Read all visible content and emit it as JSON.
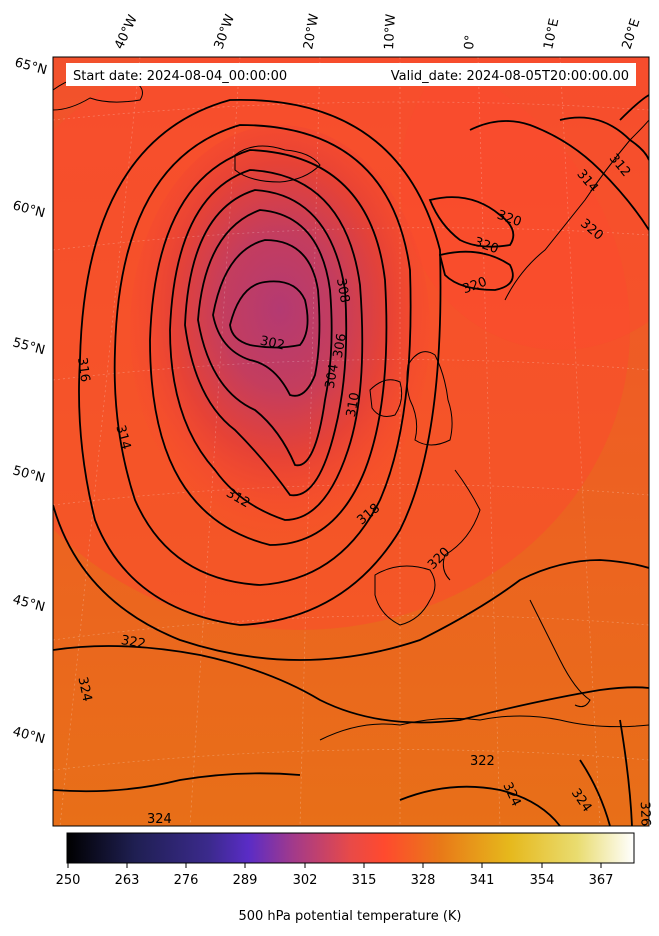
{
  "header": {
    "start_date": "Start date: 2024-08-04_00:00:00",
    "valid_date": "Valid_date: 2024-08-05T20:00:00.00"
  },
  "graticule": {
    "longitudes": [
      "40°W",
      "30°W",
      "20°W",
      "10°W",
      "0°",
      "10°E",
      "20°E"
    ],
    "latitudes": [
      "65°N",
      "60°N",
      "55°N",
      "50°N",
      "45°N",
      "40°N"
    ]
  },
  "contour_labels": [
    "302",
    "304",
    "306",
    "308",
    "310",
    "312",
    "312",
    "314",
    "314",
    "316",
    "318",
    "320",
    "320",
    "320",
    "320",
    "320",
    "322",
    "322",
    "324",
    "324",
    "324",
    "324",
    "326"
  ],
  "colorbar": {
    "label": "500 hPa potential temperature (K)",
    "ticks": [
      "250",
      "263",
      "276",
      "289",
      "302",
      "315",
      "328",
      "341",
      "354",
      "367"
    ],
    "colormap": "CMRmap"
  },
  "colors": {
    "low_core": "#b83a6e",
    "background_field": "#ea6a1c",
    "mid_ring": "#fb4a2e",
    "contour": "#000000"
  }
}
